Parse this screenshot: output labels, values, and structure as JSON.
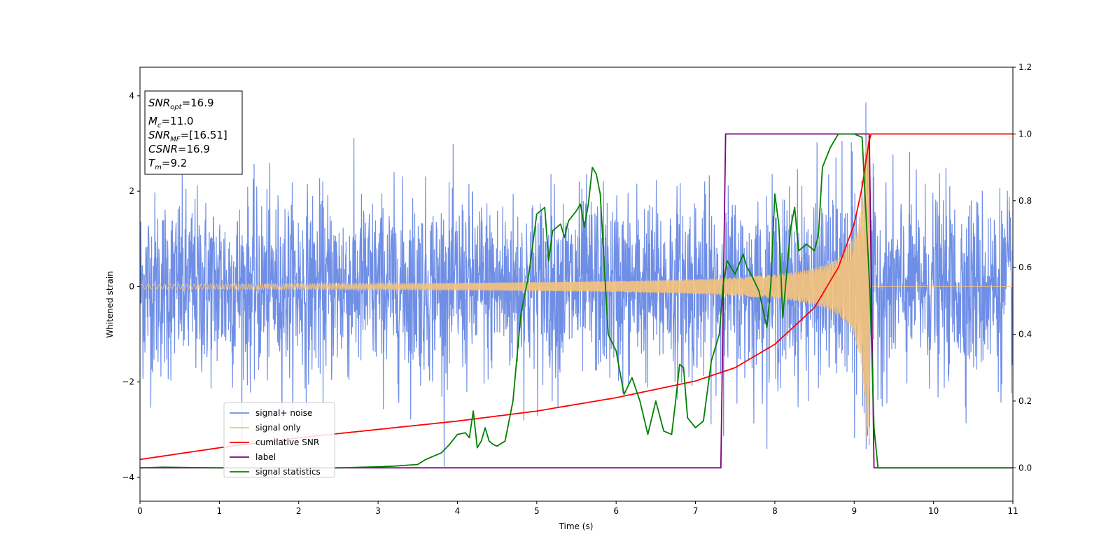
{
  "chart_data": {
    "type": "line",
    "xlabel": "Time (s)",
    "ylabel": "Whitened strain",
    "xlim": [
      0,
      11
    ],
    "ylim_left": [
      -4.5,
      4.6
    ],
    "ylim_right": [
      -0.1,
      1.2
    ],
    "x_ticks": [
      0,
      1,
      2,
      3,
      4,
      5,
      6,
      7,
      8,
      9,
      10,
      11
    ],
    "x_tick_labels": [
      "0",
      "1",
      "2",
      "3",
      "4",
      "5",
      "6",
      "7",
      "8",
      "9",
      "10",
      "11"
    ],
    "y_left_ticks": [
      -4,
      -2,
      0,
      2,
      4
    ],
    "y_left_tick_labels": [
      "−4",
      "−2",
      "0",
      "2",
      "4"
    ],
    "y_right_ticks": [
      0.0,
      0.2,
      0.4,
      0.6,
      0.8,
      1.0,
      1.2
    ],
    "y_right_tick_labels": [
      "0.0",
      "0.2",
      "0.4",
      "0.6",
      "0.8",
      "1.0",
      "1.2"
    ],
    "colors": {
      "noise": "#6f8ee6",
      "signal": "#f5c37a",
      "snr": "#ff0000",
      "label": "#800080",
      "stats": "#008000"
    },
    "legend_position": "lower-left",
    "legend": [
      {
        "name": "signal+ noise",
        "color": "#6f8ee6"
      },
      {
        "name": "signal only",
        "color": "#f5c37a"
      },
      {
        "name": "cumilative SNR",
        "color": "#ff0000"
      },
      {
        "name": "label",
        "color": "#800080"
      },
      {
        "name": "signal statistics",
        "color": "#008000"
      }
    ],
    "info_box": {
      "snr_opt": {
        "base": "SNR",
        "sub": "opt",
        "value": "=16.9"
      },
      "mc": {
        "base": "M",
        "sub": "c",
        "value": "=11.0"
      },
      "snr_mf": {
        "base": "SNR",
        "sub": "MF",
        "value": "=[16.51]"
      },
      "csnr": {
        "base": "CSNR",
        "value": "=16.9"
      },
      "tm": {
        "base": "T",
        "sub": "m",
        "value": "=9.2"
      }
    },
    "series": [
      {
        "name": "signal+ noise",
        "axis": "left",
        "description_values": {
          "std": 1.0,
          "amplitude_envelope_max": 4.2
        }
      },
      {
        "name": "signal only",
        "axis": "left",
        "chirp_end_time": 9.2,
        "amplitude_start": 0.05,
        "amplitude_peak": 3.2,
        "frequency_start": 11,
        "frequency_end": 160
      },
      {
        "name": "cumilative SNR",
        "axis": "right",
        "x": [
          0,
          1,
          2,
          3,
          4,
          5,
          6,
          7,
          7.5,
          8,
          8.5,
          8.8,
          9.0,
          9.1,
          9.2,
          11
        ],
        "y": [
          0.025,
          0.06,
          0.09,
          0.115,
          0.14,
          0.17,
          0.21,
          0.26,
          0.3,
          0.37,
          0.48,
          0.6,
          0.73,
          0.84,
          1.0,
          1.0
        ]
      },
      {
        "name": "label",
        "axis": "right",
        "x": [
          0,
          7.32,
          7.38,
          9.19,
          9.25,
          11
        ],
        "y": [
          0.0,
          0.0,
          1.0,
          1.0,
          0.0,
          0.0
        ]
      },
      {
        "name": "signal statistics",
        "axis": "right",
        "x": [
          0,
          0.3,
          1,
          2,
          2.5,
          3,
          3.2,
          3.5,
          3.6,
          3.8,
          3.9,
          4.0,
          4.1,
          4.15,
          4.2,
          4.25,
          4.3,
          4.35,
          4.4,
          4.45,
          4.5,
          4.6,
          4.7,
          4.8,
          4.9,
          5.0,
          5.1,
          5.15,
          5.2,
          5.3,
          5.35,
          5.4,
          5.5,
          5.55,
          5.6,
          5.65,
          5.7,
          5.75,
          5.8,
          5.9,
          6.0,
          6.1,
          6.2,
          6.3,
          6.4,
          6.5,
          6.6,
          6.7,
          6.75,
          6.8,
          6.85,
          6.9,
          7.0,
          7.1,
          7.2,
          7.3,
          7.35,
          7.4,
          7.5,
          7.6,
          7.65,
          7.7,
          7.8,
          7.9,
          7.95,
          8.0,
          8.05,
          8.1,
          8.2,
          8.25,
          8.3,
          8.4,
          8.5,
          8.55,
          8.6,
          8.7,
          8.8,
          8.9,
          9.0,
          9.1,
          9.2,
          9.25,
          9.3,
          11
        ],
        "y": [
          0.0,
          0.002,
          0.0,
          0.0,
          0.0,
          0.003,
          0.005,
          0.01,
          0.025,
          0.045,
          0.07,
          0.1,
          0.105,
          0.09,
          0.17,
          0.06,
          0.08,
          0.12,
          0.08,
          0.07,
          0.065,
          0.08,
          0.2,
          0.46,
          0.58,
          0.76,
          0.78,
          0.62,
          0.71,
          0.73,
          0.69,
          0.74,
          0.77,
          0.79,
          0.72,
          0.79,
          0.9,
          0.88,
          0.82,
          0.4,
          0.35,
          0.22,
          0.27,
          0.2,
          0.1,
          0.2,
          0.11,
          0.1,
          0.2,
          0.31,
          0.3,
          0.15,
          0.12,
          0.14,
          0.32,
          0.4,
          0.55,
          0.62,
          0.58,
          0.64,
          0.6,
          0.58,
          0.53,
          0.42,
          0.55,
          0.82,
          0.73,
          0.45,
          0.72,
          0.78,
          0.65,
          0.67,
          0.65,
          0.7,
          0.9,
          0.96,
          1.0,
          1.0,
          1.0,
          0.99,
          0.52,
          0.12,
          0.0,
          0.0
        ]
      }
    ]
  }
}
